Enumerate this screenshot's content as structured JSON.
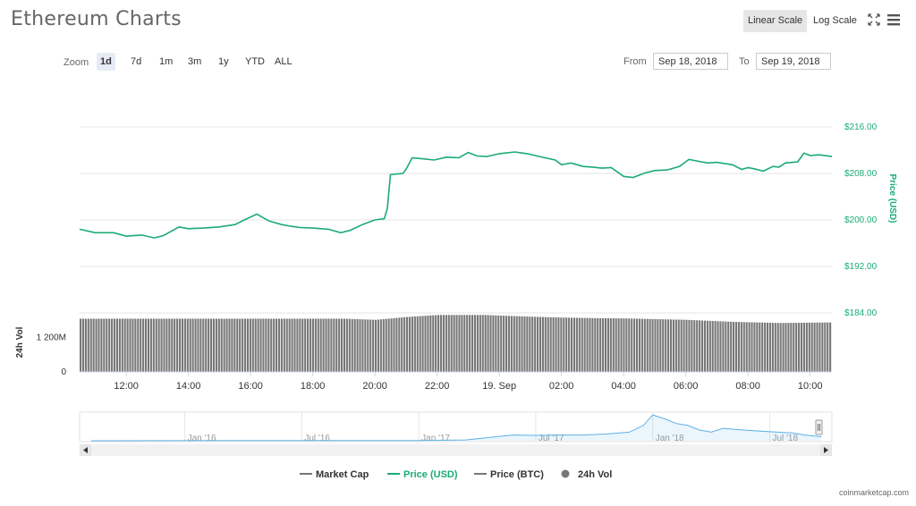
{
  "header": {
    "title": "Ethereum Charts",
    "scale_buttons": [
      {
        "label": "Linear Scale",
        "active": true
      },
      {
        "label": "Log Scale",
        "active": false
      }
    ],
    "icons": [
      "fullscreen-icon",
      "menu-icon"
    ]
  },
  "zoom": {
    "label": "Zoom",
    "options": [
      {
        "label": "1d",
        "active": true
      },
      {
        "label": "7d",
        "active": false
      },
      {
        "label": "1m",
        "active": false
      },
      {
        "label": "3m",
        "active": false
      },
      {
        "label": "1y",
        "active": false
      },
      {
        "label": "YTD",
        "active": false
      },
      {
        "label": "ALL",
        "active": false
      }
    ]
  },
  "range": {
    "from_label": "From",
    "from_value": "Sep 18, 2018",
    "to_label": "To",
    "to_value": "Sep 19, 2018"
  },
  "credit": "coinmarketcap.com",
  "colors": {
    "price_usd": "#1bab73",
    "volume": "#777777",
    "navigator": "#5cb0e6",
    "axis_text": "#333333",
    "grid": "#e6e6e6"
  },
  "chart_data": {
    "type": "line",
    "x_tick_labels": [
      "12:00",
      "14:00",
      "16:00",
      "18:00",
      "20:00",
      "22:00",
      "19. Sep",
      "02:00",
      "04:00",
      "06:00",
      "08:00",
      "10:00"
    ],
    "x_ticks_hours": [
      12,
      14,
      16,
      18,
      20,
      22,
      24,
      26,
      28,
      30,
      32,
      34
    ],
    "x_range_hours": [
      10.5,
      34.7
    ],
    "price": {
      "ylabel": "Price (USD)",
      "ylim": [
        184,
        216
      ],
      "ticks": [
        216,
        208,
        200,
        192,
        184
      ],
      "tick_labels": [
        "$216.00",
        "$208.00",
        "$200.00",
        "$192.00",
        "$184.00"
      ],
      "series": [
        {
          "name": "Price (USD)",
          "x": [
            10.5,
            11.0,
            11.6,
            12.0,
            12.5,
            12.9,
            13.2,
            13.7,
            14.0,
            14.5,
            15.0,
            15.5,
            15.8,
            16.2,
            16.6,
            17.0,
            17.3,
            17.6,
            18.0,
            18.5,
            18.9,
            19.2,
            19.6,
            20.0,
            20.3,
            20.4,
            20.5,
            20.9,
            21.0,
            21.2,
            21.6,
            21.9,
            22.3,
            22.7,
            23.0,
            23.3,
            23.6,
            24.0,
            24.5,
            24.9,
            25.3,
            25.8,
            26.0,
            26.3,
            26.7,
            27.0,
            27.3,
            27.6,
            28.0,
            28.3,
            28.7,
            29.0,
            29.4,
            29.8,
            30.1,
            30.4,
            30.7,
            31.0,
            31.5,
            31.8,
            32.0,
            32.2,
            32.5,
            32.8,
            33.0,
            33.2,
            33.6,
            33.8,
            34.0,
            34.3,
            34.7
          ],
          "values": [
            198.4,
            197.8,
            197.8,
            197.2,
            197.4,
            196.9,
            197.3,
            198.8,
            198.5,
            198.6,
            198.8,
            199.2,
            200.0,
            201.0,
            199.8,
            199.2,
            198.9,
            198.7,
            198.6,
            198.4,
            197.8,
            198.2,
            199.2,
            200.0,
            200.2,
            202.0,
            207.8,
            208.0,
            208.7,
            210.7,
            210.5,
            210.3,
            210.8,
            210.7,
            211.6,
            211.0,
            210.9,
            211.4,
            211.7,
            211.4,
            210.9,
            210.3,
            209.5,
            209.8,
            209.2,
            209.1,
            208.9,
            209.0,
            207.5,
            207.3,
            208.1,
            208.5,
            208.6,
            209.2,
            210.4,
            210.1,
            209.8,
            209.9,
            209.5,
            208.7,
            209.0,
            208.8,
            208.4,
            209.2,
            209.1,
            209.8,
            210.0,
            211.5,
            211.1,
            211.2,
            210.9
          ]
        }
      ]
    },
    "volume": {
      "ylabel": "24h Vol",
      "ylim": [
        0,
        2000
      ],
      "tick_labels": [
        "1 200M",
        "0"
      ],
      "ticks": [
        1200,
        0
      ],
      "series": [
        {
          "name": "24h Vol",
          "x": [
            10.5,
            19.0,
            20.0,
            21.0,
            22.0,
            23.5,
            25.0,
            26.0,
            27.0,
            28.0,
            30.0,
            31.5,
            33.0,
            34.7
          ],
          "values": [
            1860,
            1860,
            1820,
            1920,
            1990,
            1990,
            1930,
            1900,
            1880,
            1870,
            1820,
            1750,
            1710,
            1730
          ]
        }
      ]
    },
    "navigator": {
      "tick_labels": [
        "Jan '16",
        "Jul '16",
        "Jan '17",
        "Jul '17",
        "Jan '18",
        "Jul '18"
      ],
      "ticks_year": [
        2016.0,
        2016.5,
        2017.0,
        2017.5,
        2018.0,
        2018.5
      ],
      "x_range_year": [
        2015.6,
        2018.72
      ],
      "series": [
        {
          "x": [
            2015.6,
            2016.5,
            2017.0,
            2017.2,
            2017.4,
            2017.5,
            2017.6,
            2017.7,
            2017.8,
            2017.9,
            2017.96,
            2018.0,
            2018.05,
            2018.1,
            2018.15,
            2018.2,
            2018.25,
            2018.3,
            2018.4,
            2018.5,
            2018.6,
            2018.65,
            2018.72
          ],
          "values": [
            1,
            12,
            10,
            40,
            300,
            280,
            300,
            300,
            350,
            450,
            800,
            1350,
            1150,
            900,
            800,
            560,
            450,
            650,
            550,
            470,
            400,
            300,
            210
          ]
        }
      ]
    },
    "legend": [
      {
        "name": "Market Cap",
        "symbol": "line",
        "color": "#777777"
      },
      {
        "name": "Price (USD)",
        "symbol": "line",
        "color": "#1bab73"
      },
      {
        "name": "Price (BTC)",
        "symbol": "line",
        "color": "#777777"
      },
      {
        "name": "24h Vol",
        "symbol": "dot",
        "color": "#777777"
      }
    ]
  }
}
